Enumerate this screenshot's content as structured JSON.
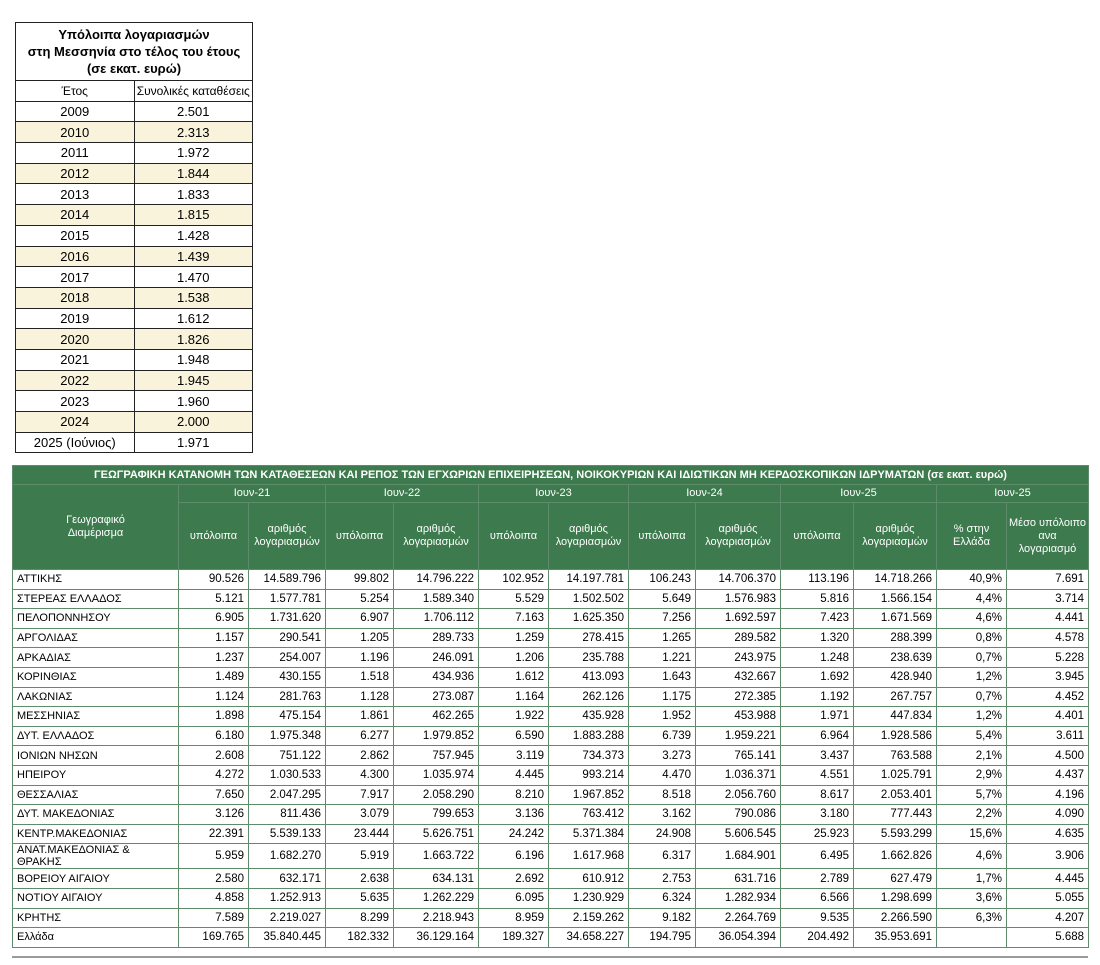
{
  "balances_table": {
    "title_lines": [
      "Υπόλοιπα λογαριασμών",
      "στη Μεσσηνία στο τέλος του έτους",
      "(σε εκατ. ευρώ)"
    ],
    "headers": [
      "Έτος",
      "Συνολικές καταθέσεις"
    ],
    "rows": [
      [
        "2009",
        "2.501"
      ],
      [
        "2010",
        "2.313"
      ],
      [
        "2011",
        "1.972"
      ],
      [
        "2012",
        "1.844"
      ],
      [
        "2013",
        "1.833"
      ],
      [
        "2014",
        "1.815"
      ],
      [
        "2015",
        "1.428"
      ],
      [
        "2016",
        "1.439"
      ],
      [
        "2017",
        "1.470"
      ],
      [
        "2018",
        "1.538"
      ],
      [
        "2019",
        "1.612"
      ],
      [
        "2020",
        "1.826"
      ],
      [
        "2021",
        "1.948"
      ],
      [
        "2022",
        "1.945"
      ],
      [
        "2023",
        "1.960"
      ],
      [
        "2024",
        "2.000"
      ],
      [
        "2025 (Ιούνιος)",
        "1.971"
      ]
    ]
  },
  "distribution_table": {
    "title": "ΓΕΩΓΡΑΦΙΚΗ ΚΑΤΑΝΟΜΗ ΤΩΝ ΚΑΤΑΘΕΣΕΩΝ ΚΑΙ ΡΕΠΟΣ ΤΩΝ ΕΓΧΩΡΙΩΝ ΕΠΙΧΕΙΡΗΣΕΩΝ, ΝΟΙΚΟΚΥΡΙΩΝ ΚΑΙ ΙΔΙΩΤΙΚΩΝ ΜΗ ΚΕΡΔΟΣΚΟΠΙΚΩΝ ΙΔΡΥΜΑΤΩΝ (σε εκατ. ευρώ)",
    "region_header": "Γεωγραφικό Διαμέρισμα",
    "periods": [
      "Ιουν-21",
      "Ιουν-22",
      "Ιουν-23",
      "Ιουν-24",
      "Ιουν-25",
      "Ιουν-25"
    ],
    "sub_headers": [
      "υπόλοιπα",
      "αριθμός λογαριασμών",
      "υπόλοιπα",
      "αριθμός λογαριασμών",
      "υπόλοιπα",
      "αριθμός λογαριασμών",
      "υπόλοιπα",
      "αριθμός λογαριασμών",
      "υπόλοιπα",
      "αριθμός λογαριασμών",
      "% στην Ελλάδα",
      "Μέσο υπόλοιπο ανα λογαριασμό"
    ],
    "rows": [
      [
        "ΑΤΤΙΚΗΣ",
        "90.526",
        "14.589.796",
        "99.802",
        "14.796.222",
        "102.952",
        "14.197.781",
        "106.243",
        "14.706.370",
        "113.196",
        "14.718.266",
        "40,9%",
        "7.691"
      ],
      [
        "ΣΤΕΡΕΑΣ ΕΛΛΑΔΟΣ",
        "5.121",
        "1.577.781",
        "5.254",
        "1.589.340",
        "5.529",
        "1.502.502",
        "5.649",
        "1.576.983",
        "5.816",
        "1.566.154",
        "4,4%",
        "3.714"
      ],
      [
        "ΠΕΛΟΠΟΝΝΗΣΟΥ",
        "6.905",
        "1.731.620",
        "6.907",
        "1.706.112",
        "7.163",
        "1.625.350",
        "7.256",
        "1.692.597",
        "7.423",
        "1.671.569",
        "4,6%",
        "4.441"
      ],
      [
        "ΑΡΓΟΛΙΔΑΣ",
        "1.157",
        "290.541",
        "1.205",
        "289.733",
        "1.259",
        "278.415",
        "1.265",
        "289.582",
        "1.320",
        "288.399",
        "0,8%",
        "4.578"
      ],
      [
        "ΑΡΚΑΔΙΑΣ",
        "1.237",
        "254.007",
        "1.196",
        "246.091",
        "1.206",
        "235.788",
        "1.221",
        "243.975",
        "1.248",
        "238.639",
        "0,7%",
        "5.228"
      ],
      [
        "ΚΟΡΙΝΘΙΑΣ",
        "1.489",
        "430.155",
        "1.518",
        "434.936",
        "1.612",
        "413.093",
        "1.643",
        "432.667",
        "1.692",
        "428.940",
        "1,2%",
        "3.945"
      ],
      [
        "ΛΑΚΩΝΙΑΣ",
        "1.124",
        "281.763",
        "1.128",
        "273.087",
        "1.164",
        "262.126",
        "1.175",
        "272.385",
        "1.192",
        "267.757",
        "0,7%",
        "4.452"
      ],
      [
        "ΜΕΣΣΗΝΙΑΣ",
        "1.898",
        "475.154",
        "1.861",
        "462.265",
        "1.922",
        "435.928",
        "1.952",
        "453.988",
        "1.971",
        "447.834",
        "1,2%",
        "4.401"
      ],
      [
        "ΔΥΤ. ΕΛΛΑΔΟΣ",
        "6.180",
        "1.975.348",
        "6.277",
        "1.979.852",
        "6.590",
        "1.883.288",
        "6.739",
        "1.959.221",
        "6.964",
        "1.928.586",
        "5,4%",
        "3.611"
      ],
      [
        "ΙΟΝΙΩΝ ΝΗΣΩΝ",
        "2.608",
        "751.122",
        "2.862",
        "757.945",
        "3.119",
        "734.373",
        "3.273",
        "765.141",
        "3.437",
        "763.588",
        "2,1%",
        "4.500"
      ],
      [
        "ΗΠΕΙΡΟΥ",
        "4.272",
        "1.030.533",
        "4.300",
        "1.035.974",
        "4.445",
        "993.214",
        "4.470",
        "1.036.371",
        "4.551",
        "1.025.791",
        "2,9%",
        "4.437"
      ],
      [
        "ΘΕΣΣΑΛΙΑΣ",
        "7.650",
        "2.047.295",
        "7.917",
        "2.058.290",
        "8.210",
        "1.967.852",
        "8.518",
        "2.056.760",
        "8.617",
        "2.053.401",
        "5,7%",
        "4.196"
      ],
      [
        "ΔΥΤ. ΜΑΚΕΔΟΝΙΑΣ",
        "3.126",
        "811.436",
        "3.079",
        "799.653",
        "3.136",
        "763.412",
        "3.162",
        "790.086",
        "3.180",
        "777.443",
        "2,2%",
        "4.090"
      ],
      [
        "ΚΕΝΤΡ.ΜΑΚΕΔΟΝΙΑΣ",
        "22.391",
        "5.539.133",
        "23.444",
        "5.626.751",
        "24.242",
        "5.371.384",
        "24.908",
        "5.606.545",
        "25.923",
        "5.593.299",
        "15,6%",
        "4.635"
      ],
      [
        "ΑΝΑΤ.ΜΑΚΕΔΟΝΙΑΣ & ΘΡΑΚΗΣ",
        "5.959",
        "1.682.270",
        "5.919",
        "1.663.722",
        "6.196",
        "1.617.968",
        "6.317",
        "1.684.901",
        "6.495",
        "1.662.826",
        "4,6%",
        "3.906"
      ],
      [
        "ΒΟΡΕΙΟΥ ΑΙΓΑΙΟΥ",
        "2.580",
        "632.171",
        "2.638",
        "634.131",
        "2.692",
        "610.912",
        "2.753",
        "631.716",
        "2.789",
        "627.479",
        "1,7%",
        "4.445"
      ],
      [
        "ΝΟΤΙΟΥ ΑΙΓΑΙΟΥ",
        "4.858",
        "1.252.913",
        "5.635",
        "1.262.229",
        "6.095",
        "1.230.929",
        "6.324",
        "1.282.934",
        "6.566",
        "1.298.699",
        "3,6%",
        "5.055"
      ],
      [
        "ΚΡΗΤΗΣ",
        "7.589",
        "2.219.027",
        "8.299",
        "2.218.943",
        "8.959",
        "2.159.262",
        "9.182",
        "2.264.769",
        "9.535",
        "2.266.590",
        "6,3%",
        "4.207"
      ],
      [
        "Ελλάδα",
        "169.765",
        "35.840.445",
        "182.332",
        "36.129.164",
        "189.327",
        "34.658.227",
        "194.795",
        "36.054.394",
        "204.492",
        "35.953.691",
        null,
        "5.688"
      ]
    ]
  }
}
